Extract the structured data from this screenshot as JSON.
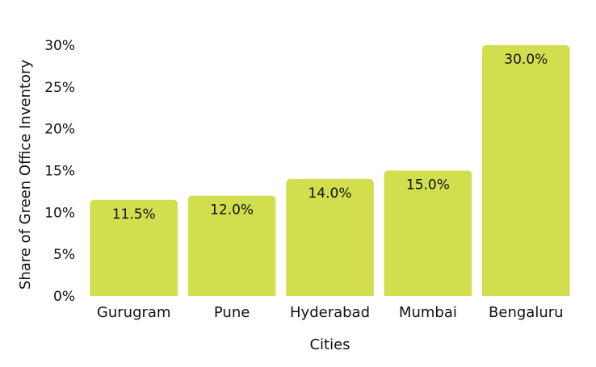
{
  "chart_data": {
    "type": "bar",
    "title": "",
    "xlabel": "Cities",
    "ylabel": "Share of Green Office Inventory",
    "categories": [
      "Gurugram",
      "Pune",
      "Hyderabad",
      "Mumbai",
      "Bengaluru"
    ],
    "values": [
      11.5,
      12.0,
      14.0,
      15.0,
      30.0
    ],
    "data_labels": [
      "11.5%",
      "12.0%",
      "14.0%",
      "15.0%",
      "30.0%"
    ],
    "ylim": [
      0,
      30
    ],
    "y_ticks": [
      0,
      5,
      10,
      15,
      20,
      25,
      30
    ],
    "y_tick_labels": [
      "0%",
      "5%",
      "10%",
      "15%",
      "20%",
      "25%",
      "30%"
    ],
    "grid": false,
    "legend": "none",
    "bar_color": "#d1df4f"
  }
}
